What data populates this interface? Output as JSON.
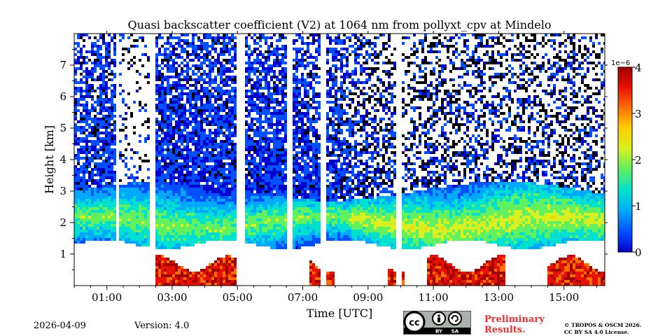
{
  "chart_data": {
    "type": "heatmap",
    "title": "Quasi backscatter coefficient (V2) at 1064 nm from pollyxt_cpv at Mindelo",
    "xlabel": "Time [UTC]",
    "ylabel": "Height [km]",
    "x_range_hours": [
      0.0,
      16.25
    ],
    "y_range_km": [
      0.0,
      8.0
    ],
    "x_ticks": [
      "01:00",
      "03:00",
      "05:00",
      "07:00",
      "09:00",
      "11:00",
      "13:00",
      "15:00"
    ],
    "x_tick_hours": [
      1,
      3,
      5,
      7,
      9,
      11,
      13,
      15
    ],
    "y_ticks": [
      "1",
      "2",
      "3",
      "4",
      "5",
      "6",
      "7"
    ],
    "y_tick_values": [
      1,
      2,
      3,
      4,
      5,
      6,
      7
    ],
    "colorbar": {
      "label_exponent": "1e−6",
      "range": [
        0,
        4
      ],
      "ticks": [
        "0",
        "1",
        "2",
        "3",
        "4"
      ],
      "tick_values": [
        0,
        1,
        2,
        3,
        4
      ],
      "colormap": [
        "#0000cc",
        "#0050ff",
        "#00a8ff",
        "#00e0d0",
        "#60f060",
        "#d8f020",
        "#ffd000",
        "#ff7000",
        "#e81000",
        "#a00000"
      ]
    },
    "gaps_hours": [
      [
        1.25,
        1.35
      ],
      [
        2.35,
        2.5
      ],
      [
        5.0,
        5.2
      ],
      [
        6.5,
        6.7
      ],
      [
        7.55,
        7.7
      ],
      [
        9.85,
        10.05
      ]
    ],
    "layers": {
      "dust_base_km": 1.3,
      "dust_peak_km": 2.0,
      "dust_top_km": 3.0,
      "marine_layer_top_km": 0.7
    }
  },
  "footer": {
    "date": "2026-04-09",
    "version": "Version: 4.0",
    "license_badge": [
      "cc",
      "BY",
      "SA"
    ],
    "preliminary": [
      "Preliminary",
      "Results."
    ],
    "copyright": [
      "© TROPOS & OSCM 2026.",
      "CC BY SA 4.0 License."
    ]
  }
}
